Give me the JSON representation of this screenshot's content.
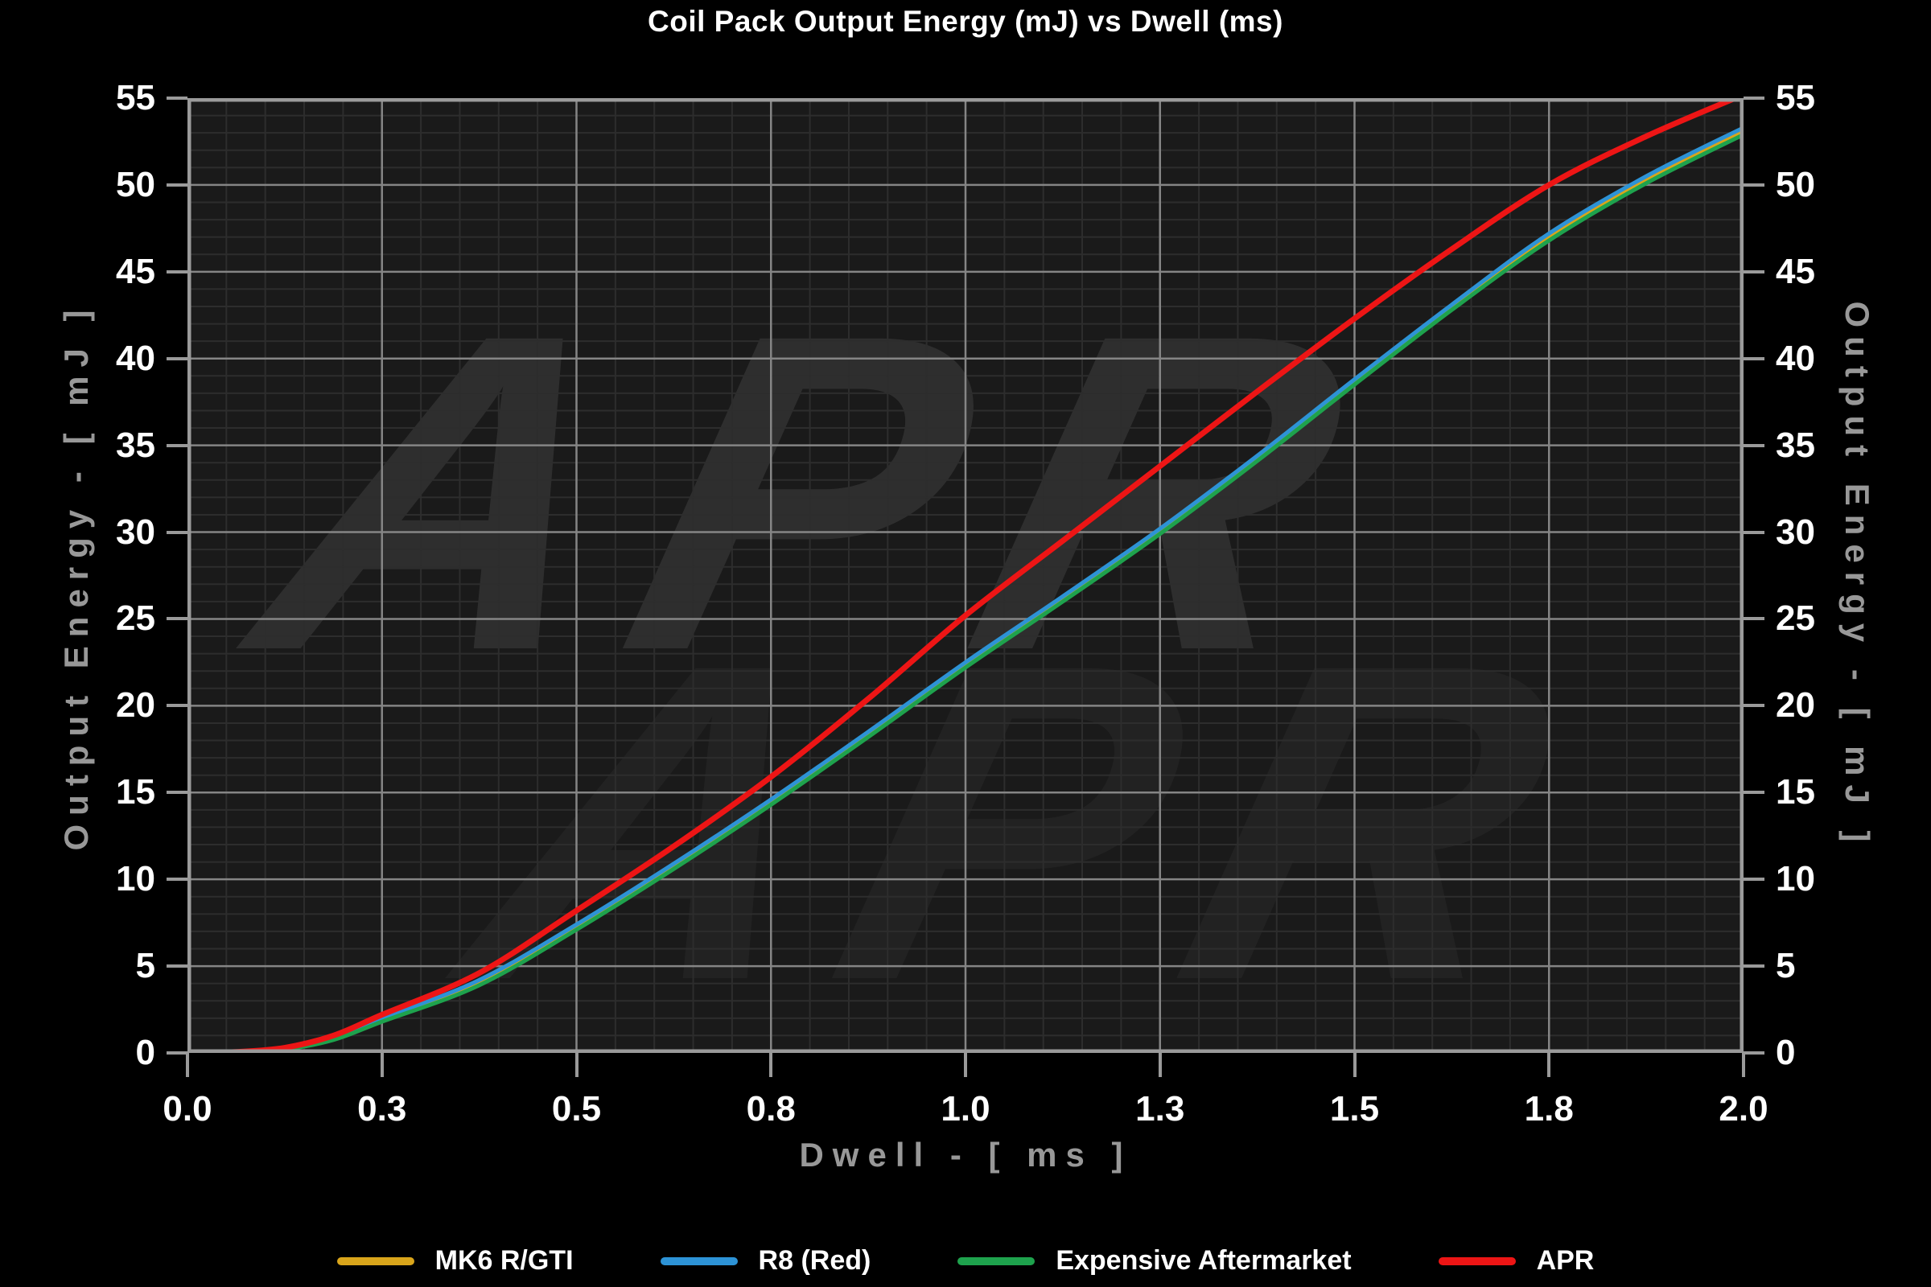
{
  "title": "Coil Pack Output Energy (mJ) vs Dwell (ms)",
  "watermark": {
    "text": "APR"
  },
  "chart_data": {
    "type": "line",
    "title": "Coil Pack Output Energy (mJ) vs Dwell (ms)",
    "xlabel": "Dwell - [ ms ]",
    "ylabel_left": "Output Energy - [ mJ ]",
    "ylabel_right": "Output Energy - [ mJ ]",
    "xlim": [
      0,
      2
    ],
    "ylim": [
      0,
      55
    ],
    "x_tick_positions": [
      0,
      0.25,
      0.5,
      0.75,
      1.0,
      1.25,
      1.5,
      1.75,
      2.0
    ],
    "x_tick_labels": [
      "0.0",
      "0.3",
      "0.5",
      "0.8",
      "1.0",
      "1.3",
      "1.5",
      "1.8",
      "2.0"
    ],
    "y_ticks": [
      0,
      5,
      10,
      15,
      20,
      25,
      30,
      35,
      40,
      45,
      50,
      55
    ],
    "x_minor_step": 0.05,
    "y_minor_step": 1,
    "grid": true,
    "legend_position": "bottom",
    "x": [
      0,
      0.0625,
      0.125,
      0.1875,
      0.25,
      0.375,
      0.5,
      0.625,
      0.75,
      0.875,
      1.0,
      1.125,
      1.25,
      1.375,
      1.5,
      1.625,
      1.75,
      1.875,
      2.0
    ],
    "series": [
      {
        "name": "MK6 R/GTI",
        "color": "#d9a51b",
        "width": 5,
        "values": [
          0,
          0.04,
          0.22,
          0.8,
          1.9,
          4.05,
          7.25,
          10.75,
          14.45,
          18.35,
          22.35,
          26.15,
          30.05,
          34.25,
          38.65,
          42.95,
          47.0,
          50.3,
          53.1
        ]
      },
      {
        "name": "R8 (Red)",
        "color": "#2d93d6",
        "width": 5,
        "values": [
          0,
          0.05,
          0.25,
          0.9,
          2.0,
          4.2,
          7.4,
          10.9,
          14.6,
          18.5,
          22.5,
          26.3,
          30.2,
          34.4,
          38.8,
          43.1,
          47.2,
          50.5,
          53.3
        ]
      },
      {
        "name": "Expensive Aftermarket",
        "color": "#1ea24d",
        "width": 5,
        "values": [
          0,
          0.03,
          0.2,
          0.75,
          1.8,
          3.9,
          7.1,
          10.6,
          14.3,
          18.2,
          22.2,
          26.0,
          29.9,
          34.1,
          38.5,
          42.8,
          46.8,
          50.1,
          52.9
        ]
      },
      {
        "name": "APR",
        "color": "#ed1515",
        "width": 7,
        "values": [
          0,
          0.06,
          0.3,
          1.0,
          2.2,
          4.6,
          8.2,
          11.9,
          15.9,
          20.4,
          25.2,
          29.5,
          33.8,
          38.1,
          42.3,
          46.3,
          50.0,
          52.8,
          55.2
        ]
      }
    ],
    "style": {
      "page_bg": "#000000",
      "plot_bg": "#1a1a1a",
      "grid_major": "#858585",
      "grid_minor": "#2d2d2d",
      "spine": "#9a9a9a",
      "tick_label_color": "#ffffff",
      "axis_title_color": "#989898"
    }
  }
}
